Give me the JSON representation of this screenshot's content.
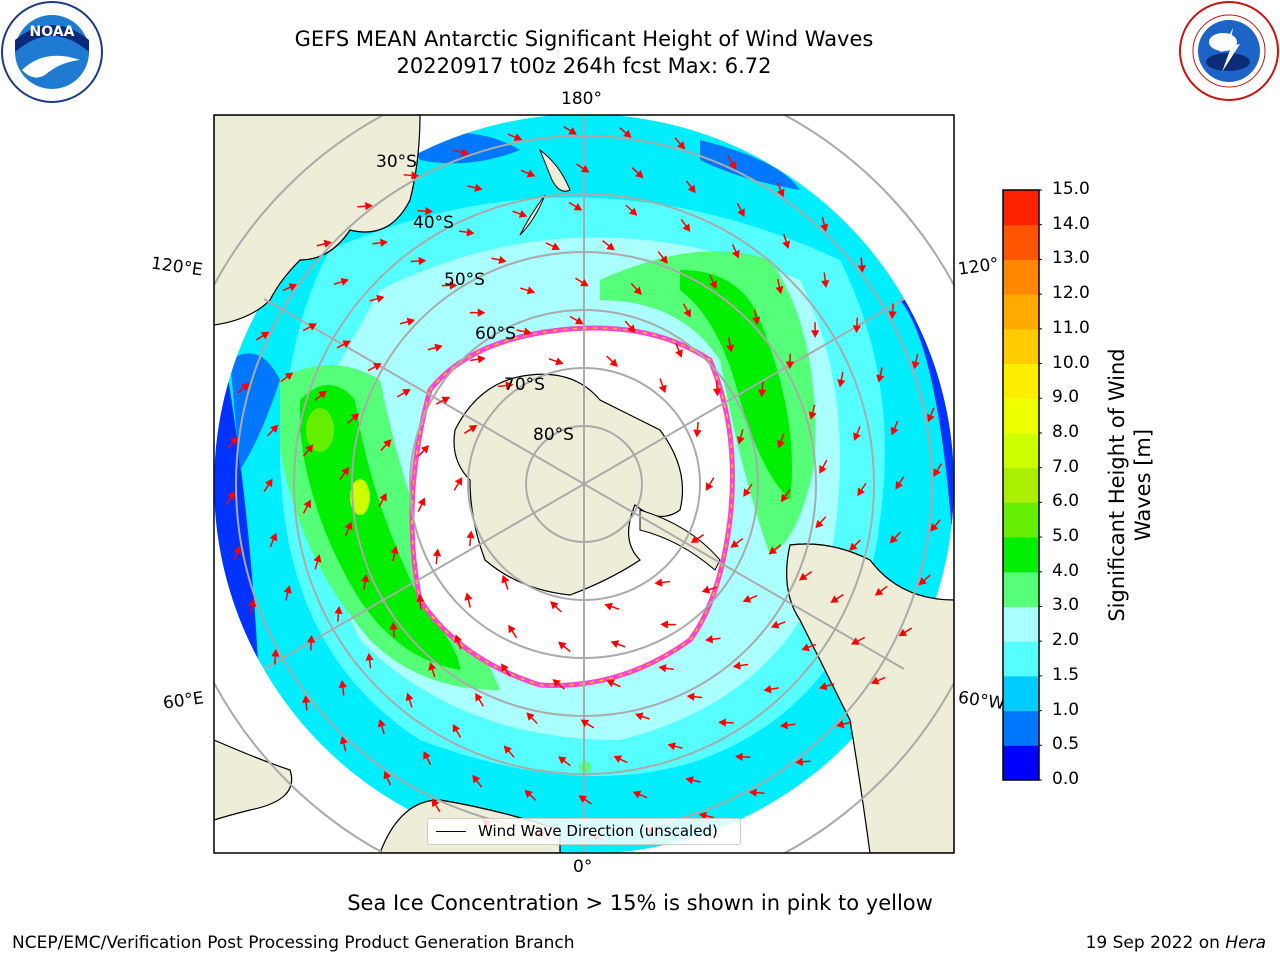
{
  "title_line1": "GEFS MEAN Antarctic Significant Height of Wind Waves",
  "title_line2": "20220917 t00z 264h fcst   Max: 6.72",
  "lon_labels": {
    "top": "180°",
    "bottom": "0°",
    "left_upper": "120°E",
    "left_lower": "60°E",
    "right_upper": "120°",
    "right_lower": "60°W"
  },
  "lat_labels": [
    "30°S",
    "40°S",
    "50°S",
    "60°S",
    "70°S",
    "80°S"
  ],
  "colorbar": {
    "label": "Significant Height of Wind Waves [m]",
    "ticks": [
      "15.0",
      "14.0",
      "13.0",
      "12.0",
      "11.0",
      "10.0",
      "9.0",
      "8.0",
      "7.0",
      "6.0",
      "5.0",
      "4.0",
      "3.0",
      "2.0",
      "1.5",
      "1.0",
      "0.5",
      "0.0"
    ],
    "colors": [
      "#0000ff",
      "#0077ff",
      "#00ccff",
      "#55ffff",
      "#aaffff",
      "#55ff77",
      "#00ee00",
      "#66ee00",
      "#aaee00",
      "#ccff00",
      "#eeff00",
      "#ffee00",
      "#ffcc00",
      "#ffaa00",
      "#ff8800",
      "#ff5500",
      "#ff2200"
    ]
  },
  "legend_text": "Wind Wave Direction (unscaled)",
  "sea_ice_note": "Sea Ice Concentration > 15% is shown in pink to yellow",
  "footer_left": "NCEP/EMC/Verification Post Processing Product Generation Branch",
  "footer_right_date": "19 Sep 2022 on ",
  "footer_right_host": "Hera",
  "logos": {
    "left": "NOAA",
    "right": "NATIONAL WEATHER SERVICE"
  }
}
